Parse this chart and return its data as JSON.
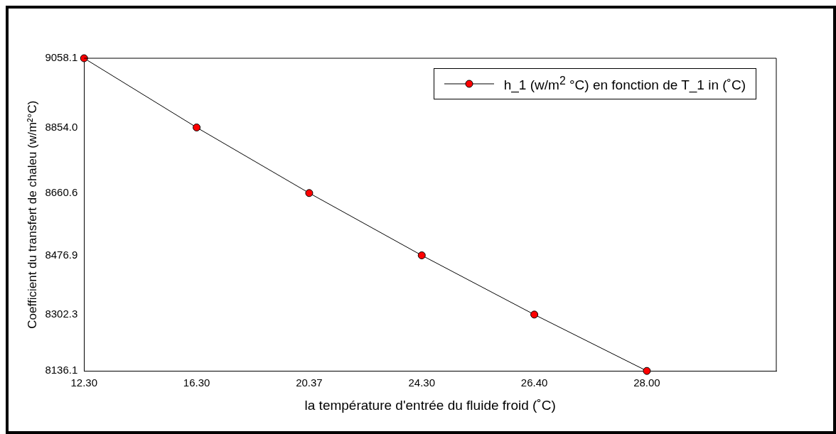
{
  "chart_data": {
    "type": "line",
    "xlabel": "la température d'entrée du fluide froid (˚C)",
    "ylabel": "Coefficient du transfert de chaleu (w/m²°C)",
    "categories": [
      "12.30",
      "16.30",
      "20.37",
      "24.30",
      "26.40",
      "28.00"
    ],
    "series": [
      {
        "name": "h_1 (w/m$^{2}$ °C) en fonction de T_1 in (˚C)",
        "color": "#ff0000",
        "values": [
          9058.1,
          8854.0,
          8660.6,
          8476.9,
          8302.3,
          8136.1
        ]
      }
    ],
    "ylim": [
      8136.1,
      9058.1
    ],
    "yticks": [
      8136.1,
      8302.3,
      8476.9,
      8660.6,
      {
        "value": 8854.0,
        "label": "8854.0"
      },
      9058.1
    ],
    "marker": "circle",
    "line_style": "solid",
    "grid": false,
    "legend": "top right"
  }
}
